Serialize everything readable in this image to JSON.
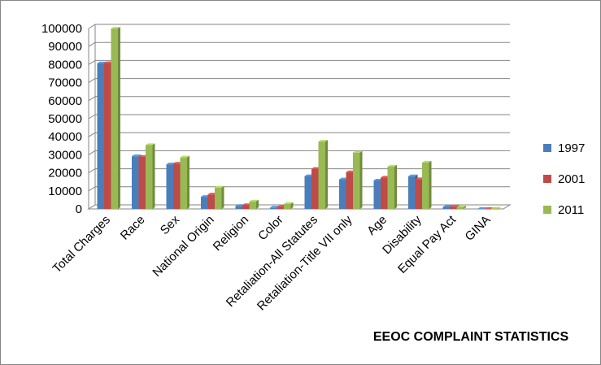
{
  "chart_data": {
    "type": "bar",
    "title": "EEOC COMPLAINT STATISTICS",
    "categories": [
      "Total Charges",
      "Race",
      "Sex",
      "National Origin",
      "Religion",
      "Color",
      "Retaliation-All Statutes",
      "Retaliation-Title VII only",
      "Age",
      "Disability",
      "Equal Pay Act",
      "GINA"
    ],
    "series": [
      {
        "name": "1997",
        "color": "#4a7ebb",
        "values": [
          80680,
          29199,
          24728,
          6712,
          1709,
          762,
          18198,
          16394,
          15785,
          18108,
          1134,
          0
        ]
      },
      {
        "name": "2001",
        "color": "#be4b48",
        "values": [
          80840,
          28912,
          25140,
          8025,
          2127,
          1135,
          22257,
          20409,
          17405,
          16470,
          1251,
          0
        ]
      },
      {
        "name": "2011",
        "color": "#98b954",
        "values": [
          99947,
          35395,
          28534,
          11833,
          4151,
          2832,
          37334,
          31208,
          23465,
          25742,
          919,
          245
        ]
      }
    ],
    "yticks": [
      "0",
      "10000",
      "20000",
      "30000",
      "40000",
      "50000",
      "60000",
      "70000",
      "80000",
      "90000",
      "100000"
    ],
    "ylim": [
      0,
      100000
    ],
    "grid": true,
    "legend": "right",
    "xlabel": "",
    "ylabel": ""
  }
}
